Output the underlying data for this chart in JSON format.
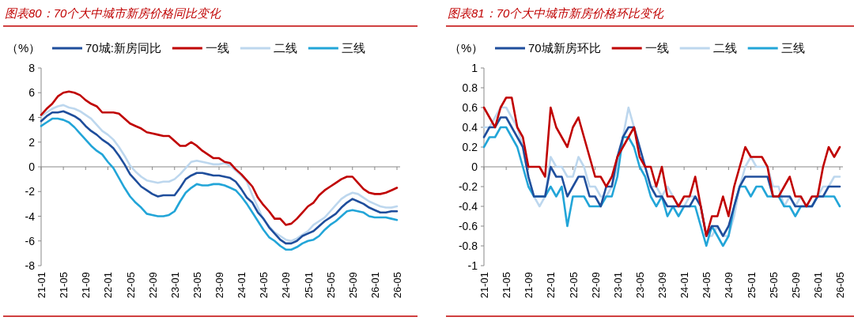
{
  "chart_data": [
    {
      "type": "line",
      "title": "图表80：70个大中城市新房价格同比变化",
      "ylabel": "（%）",
      "legend": "top",
      "line_style": "solid",
      "marker": "none",
      "categories": [
        "21-01",
        null,
        null,
        null,
        "21-05",
        null,
        null,
        null,
        "21-09",
        null,
        null,
        null,
        "22-01",
        null,
        null,
        null,
        "22-05",
        null,
        null,
        null,
        "22-09",
        null,
        null,
        null,
        "23-01",
        null,
        null,
        null,
        "23-05",
        null,
        null,
        null,
        "23-09",
        null,
        null,
        null,
        "24-01",
        null,
        null,
        null,
        "24-05",
        null,
        null,
        null,
        "24-09",
        null,
        null,
        null,
        "25-01",
        null,
        null,
        null,
        "25-05",
        null,
        null,
        null,
        "25-09",
        null,
        null,
        null,
        "26-01",
        null,
        null,
        null,
        "26-05"
      ],
      "ylim": [
        -8,
        8
      ],
      "yticks": [
        -8,
        -6,
        -4,
        -2,
        0,
        2,
        4,
        6,
        8
      ],
      "series": [
        {
          "name": "70城:新房同比",
          "color": "#1f4e9c",
          "values": [
            3.7,
            4.1,
            4.4,
            4.4,
            4.5,
            4.3,
            4.1,
            3.8,
            3.3,
            2.9,
            2.6,
            2.2,
            1.9,
            1.5,
            0.9,
            0.2,
            -0.6,
            -1.1,
            -1.6,
            -1.9,
            -2.2,
            -2.4,
            -2.3,
            -2.3,
            -2.3,
            -1.7,
            -1.0,
            -0.7,
            -0.5,
            -0.5,
            -0.6,
            -0.7,
            -0.7,
            -0.8,
            -0.9,
            -1.2,
            -1.8,
            -2.5,
            -2.9,
            -3.7,
            -4.2,
            -4.9,
            -5.4,
            -5.9,
            -6.2,
            -6.2,
            -6.0,
            -5.6,
            -5.4,
            -5.2,
            -4.8,
            -4.4,
            -4.1,
            -3.8,
            -3.3,
            -2.9,
            -2.6,
            -2.8,
            -3.0,
            -3.3,
            -3.5,
            -3.7,
            -3.7,
            -3.6,
            -3.6
          ]
        },
        {
          "name": "一线",
          "color": "#c00000",
          "values": [
            4.2,
            4.7,
            5.1,
            5.7,
            6.0,
            6.1,
            6.0,
            5.8,
            5.4,
            5.1,
            4.9,
            4.4,
            4.4,
            4.4,
            4.3,
            3.9,
            3.5,
            3.3,
            3.1,
            2.8,
            2.7,
            2.6,
            2.5,
            2.5,
            2.1,
            1.7,
            1.7,
            2.0,
            1.7,
            1.3,
            1.0,
            0.7,
            0.7,
            0.4,
            0.3,
            -0.2,
            -0.6,
            -1.1,
            -1.6,
            -2.5,
            -3.1,
            -3.6,
            -4.2,
            -4.2,
            -4.7,
            -4.6,
            -4.2,
            -3.7,
            -3.2,
            -2.9,
            -2.3,
            -1.9,
            -1.6,
            -1.3,
            -1.0,
            -0.8,
            -0.8,
            -1.3,
            -1.8,
            -2.1,
            -2.2,
            -2.2,
            -2.1,
            -1.9,
            -1.7
          ]
        },
        {
          "name": "二线",
          "color": "#bdd7ee",
          "values": [
            4.1,
            4.4,
            4.7,
            4.9,
            5.0,
            4.8,
            4.7,
            4.5,
            4.2,
            3.9,
            3.4,
            2.9,
            2.6,
            2.2,
            1.6,
            0.9,
            0.1,
            -0.4,
            -0.8,
            -1.1,
            -1.2,
            -1.3,
            -1.2,
            -1.2,
            -1.0,
            -0.6,
            -0.1,
            0.4,
            0.5,
            0.4,
            0.3,
            0.2,
            0.2,
            0.3,
            0.1,
            -0.3,
            -0.7,
            -1.2,
            -2.3,
            -3.3,
            -4.3,
            -4.8,
            -5.3,
            -5.6,
            -5.9,
            -6.0,
            -5.8,
            -5.5,
            -5.2,
            -4.7,
            -4.4,
            -4.1,
            -3.6,
            -3.1,
            -2.6,
            -2.3,
            -2.1,
            -2.2,
            -2.5,
            -2.8,
            -3.0,
            -3.2,
            -3.3,
            -3.3,
            -3.2
          ]
        },
        {
          "name": "三线",
          "color": "#22a5d8",
          "values": [
            3.3,
            3.6,
            3.9,
            3.9,
            3.8,
            3.6,
            3.2,
            2.7,
            2.2,
            1.7,
            1.3,
            1.0,
            0.4,
            -0.1,
            -0.9,
            -1.7,
            -2.4,
            -2.9,
            -3.3,
            -3.8,
            -3.9,
            -4.0,
            -4.0,
            -3.9,
            -3.6,
            -2.8,
            -2.1,
            -1.7,
            -1.4,
            -1.5,
            -1.5,
            -1.4,
            -1.4,
            -1.5,
            -1.7,
            -1.9,
            -2.4,
            -3.0,
            -3.7,
            -4.4,
            -5.1,
            -5.7,
            -6.0,
            -6.4,
            -6.7,
            -6.7,
            -6.5,
            -6.2,
            -6.0,
            -5.9,
            -5.6,
            -5.1,
            -4.7,
            -4.4,
            -4.0,
            -3.6,
            -3.5,
            -3.6,
            -3.7,
            -4.0,
            -4.1,
            -4.1,
            -4.1,
            -4.2,
            -4.3
          ]
        }
      ]
    },
    {
      "type": "line",
      "title": "图表81：70个大中城市新房价格环比变化",
      "ylabel": "（%）",
      "legend": "top",
      "line_style": "solid",
      "marker": "none",
      "categories": [
        "21-01",
        null,
        null,
        null,
        "21-05",
        null,
        null,
        null,
        "21-09",
        null,
        null,
        null,
        "22-01",
        null,
        null,
        null,
        "22-05",
        null,
        null,
        null,
        "22-09",
        null,
        null,
        null,
        "23-01",
        null,
        null,
        null,
        "23-05",
        null,
        null,
        null,
        "23-09",
        null,
        null,
        null,
        "24-01",
        null,
        null,
        null,
        "24-05",
        null,
        null,
        null,
        "24-09",
        null,
        null,
        null,
        "25-01",
        null,
        null,
        null,
        "25-05",
        null,
        null,
        null,
        "25-09",
        null,
        null,
        null,
        "26-01",
        null,
        null,
        null,
        "26-05"
      ],
      "ylim": [
        -1,
        1
      ],
      "yticks": [
        -1,
        -0.8,
        -0.6,
        -0.4,
        -0.2,
        0,
        0.2,
        0.4,
        0.6,
        0.8,
        1
      ],
      "series": [
        {
          "name": "70城新房环比",
          "color": "#1f4e9c",
          "values": [
            0.3,
            0.4,
            0.4,
            0.5,
            0.5,
            0.4,
            0.3,
            0.2,
            -0.1,
            -0.3,
            -0.3,
            -0.3,
            0.0,
            -0.1,
            -0.1,
            -0.3,
            -0.2,
            -0.1,
            -0.1,
            -0.3,
            -0.3,
            -0.4,
            -0.2,
            -0.2,
            0.1,
            0.3,
            0.4,
            0.4,
            0.2,
            0.0,
            -0.2,
            -0.3,
            -0.3,
            -0.4,
            -0.4,
            -0.4,
            -0.4,
            -0.4,
            -0.3,
            -0.4,
            -0.7,
            -0.6,
            -0.6,
            -0.7,
            -0.6,
            -0.4,
            -0.2,
            -0.1,
            -0.1,
            -0.1,
            -0.1,
            -0.1,
            -0.3,
            -0.3,
            -0.3,
            -0.3,
            -0.4,
            -0.4,
            -0.4,
            -0.4,
            -0.3,
            -0.3,
            -0.2,
            -0.2,
            -0.2
          ]
        },
        {
          "name": "一线",
          "color": "#c00000",
          "values": [
            0.6,
            0.5,
            0.4,
            0.6,
            0.7,
            0.7,
            0.4,
            0.3,
            0.0,
            0.0,
            0.0,
            -0.1,
            0.6,
            0.4,
            0.3,
            0.2,
            0.4,
            0.5,
            0.3,
            0.1,
            -0.1,
            -0.1,
            -0.2,
            -0.1,
            0.1,
            0.2,
            0.3,
            0.4,
            0.1,
            0.0,
            0.0,
            -0.2,
            0.0,
            -0.3,
            -0.3,
            -0.4,
            -0.3,
            -0.3,
            -0.1,
            -0.4,
            -0.7,
            -0.5,
            -0.5,
            -0.3,
            -0.5,
            -0.2,
            0.0,
            0.2,
            0.1,
            0.1,
            0.1,
            0.0,
            -0.3,
            -0.3,
            -0.2,
            -0.1,
            -0.3,
            -0.3,
            -0.4,
            -0.3,
            -0.3,
            0.0,
            0.2,
            0.1,
            0.2
          ]
        },
        {
          "name": "二线",
          "color": "#bdd7ee",
          "values": [
            0.4,
            0.4,
            0.5,
            0.6,
            0.6,
            0.5,
            0.4,
            0.2,
            -0.1,
            -0.3,
            -0.4,
            -0.3,
            0.1,
            0.0,
            0.0,
            -0.1,
            -0.1,
            0.1,
            0.0,
            -0.2,
            -0.2,
            -0.3,
            -0.3,
            -0.2,
            0.0,
            0.3,
            0.6,
            0.4,
            0.2,
            0.0,
            -0.2,
            -0.2,
            -0.3,
            -0.2,
            -0.3,
            -0.4,
            -0.4,
            -0.3,
            -0.3,
            -0.4,
            -0.7,
            -0.7,
            -0.6,
            -0.7,
            -0.7,
            -0.5,
            -0.2,
            0.0,
            0.1,
            0.0,
            0.0,
            0.0,
            -0.2,
            -0.2,
            -0.4,
            -0.3,
            -0.4,
            -0.3,
            -0.4,
            -0.3,
            -0.3,
            -0.2,
            -0.2,
            -0.1,
            -0.1
          ]
        },
        {
          "name": "三线",
          "color": "#22a5d8",
          "values": [
            0.2,
            0.3,
            0.3,
            0.4,
            0.4,
            0.3,
            0.2,
            0.0,
            -0.2,
            -0.3,
            -0.3,
            -0.3,
            -0.2,
            -0.3,
            -0.2,
            -0.6,
            -0.3,
            -0.3,
            -0.3,
            -0.4,
            -0.4,
            -0.4,
            -0.3,
            -0.3,
            -0.1,
            0.3,
            0.3,
            0.2,
            0.0,
            -0.1,
            -0.3,
            -0.4,
            -0.3,
            -0.5,
            -0.4,
            -0.5,
            -0.4,
            -0.4,
            -0.4,
            -0.6,
            -0.8,
            -0.6,
            -0.7,
            -0.8,
            -0.7,
            -0.4,
            -0.2,
            -0.2,
            -0.3,
            -0.2,
            -0.2,
            -0.3,
            -0.3,
            -0.3,
            -0.4,
            -0.4,
            -0.5,
            -0.4,
            -0.4,
            -0.4,
            -0.3,
            -0.3,
            -0.3,
            -0.3,
            -0.4
          ]
        }
      ]
    }
  ]
}
